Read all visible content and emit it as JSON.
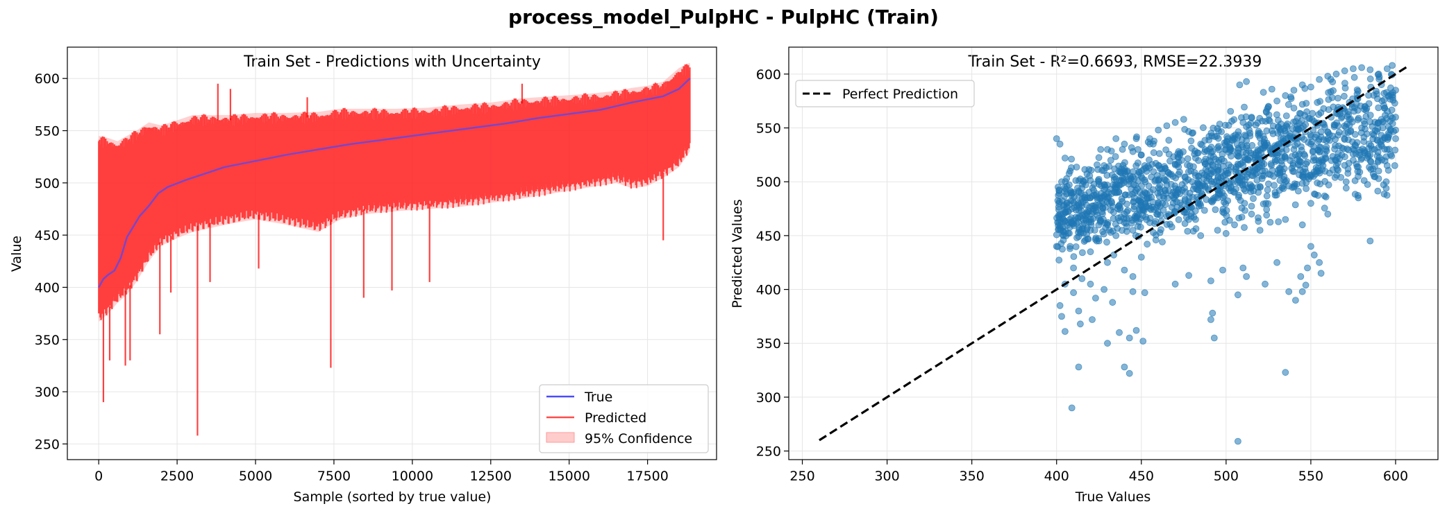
{
  "suptitle": "process_model_PulpHC - PulpHC (Train)",
  "chart_data": [
    {
      "type": "line",
      "title": "Train Set - Predictions with Uncertainty",
      "xlabel": "Sample (sorted by true value)",
      "ylabel": "Value",
      "xlim": [
        -1000,
        19700
      ],
      "ylim": [
        235,
        630
      ],
      "xticks": [
        "0",
        "2500",
        "5000",
        "7500",
        "10000",
        "12500",
        "15000",
        "17500"
      ],
      "yticks": [
        "250",
        "300",
        "350",
        "400",
        "450",
        "500",
        "550",
        "600"
      ],
      "grid": true,
      "legend": {
        "placement": "lower-right",
        "entries": [
          "True",
          "Predicted",
          "95% Confidence"
        ]
      },
      "series": [
        {
          "name": "True",
          "color": "#4a4aff",
          "x": [
            0,
            150,
            300,
            500,
            700,
            900,
            1100,
            1300,
            1600,
            1900,
            2200,
            2800,
            3500,
            4000,
            5000,
            6000,
            7000,
            8000,
            9000,
            10000,
            11000,
            12000,
            13000,
            14000,
            15000,
            16000,
            17000,
            18000,
            18500,
            18850
          ],
          "values": [
            400,
            408,
            412,
            416,
            428,
            448,
            458,
            468,
            478,
            490,
            496,
            503,
            510,
            515,
            521,
            527,
            532,
            537,
            541,
            545,
            549,
            553,
            557,
            562,
            566,
            570,
            577,
            583,
            590,
            600
          ]
        },
        {
          "name": "Predicted",
          "color": "#ff0000",
          "band_lower_x": [
            0,
            300,
            600,
            900,
            1200,
            1600,
            2000,
            2500,
            3000,
            3600,
            4200,
            5000,
            6000,
            7000,
            7700,
            8500,
            9500,
            10500,
            11500,
            12500,
            13500,
            14500,
            15500,
            16500,
            17000,
            17500,
            18000,
            18500,
            18850
          ],
          "band_lower": [
            372,
            380,
            390,
            398,
            410,
            430,
            445,
            452,
            458,
            462,
            466,
            470,
            465,
            458,
            470,
            475,
            478,
            480,
            482,
            486,
            490,
            495,
            500,
            505,
            500,
            502,
            510,
            520,
            535
          ],
          "band_upper_x": [
            0,
            300,
            600,
            900,
            1200,
            1600,
            2000,
            2500,
            3000,
            3600,
            4200,
            5000,
            6000,
            7000,
            7700,
            8500,
            9500,
            10500,
            11500,
            12500,
            13500,
            14500,
            15500,
            16500,
            17000,
            17500,
            18000,
            18500,
            18850
          ],
          "band_upper": [
            540,
            538,
            535,
            540,
            545,
            553,
            550,
            555,
            560,
            560,
            560,
            562,
            562,
            563,
            566,
            566,
            566,
            567,
            570,
            572,
            576,
            578,
            580,
            583,
            586,
            588,
            592,
            605,
            610
          ],
          "spikes": [
            {
              "x": 150,
              "y": 290
            },
            {
              "x": 350,
              "y": 330
            },
            {
              "x": 850,
              "y": 325
            },
            {
              "x": 1000,
              "y": 330
            },
            {
              "x": 1950,
              "y": 355
            },
            {
              "x": 2300,
              "y": 395
            },
            {
              "x": 3150,
              "y": 258
            },
            {
              "x": 3550,
              "y": 405
            },
            {
              "x": 5100,
              "y": 418
            },
            {
              "x": 7400,
              "y": 323
            },
            {
              "x": 8450,
              "y": 390
            },
            {
              "x": 9350,
              "y": 397
            },
            {
              "x": 10550,
              "y": 405
            },
            {
              "x": 18000,
              "y": 445
            },
            {
              "x": 3800,
              "y": 595
            },
            {
              "x": 4200,
              "y": 590
            },
            {
              "x": 6650,
              "y": 582
            },
            {
              "x": 13500,
              "y": 595
            }
          ]
        },
        {
          "name": "95% Confidence",
          "color": "#ffb3b3"
        }
      ]
    },
    {
      "type": "scatter",
      "title": "Train Set - R²=0.6693, RMSE=22.3939",
      "xlabel": "True Values",
      "ylabel": "Predicted Values",
      "xlim": [
        242,
        625
      ],
      "ylim": [
        242,
        625
      ],
      "xticks": [
        "250",
        "300",
        "350",
        "400",
        "450",
        "500",
        "550",
        "600"
      ],
      "yticks": [
        "250",
        "300",
        "350",
        "400",
        "450",
        "500",
        "550",
        "600"
      ],
      "grid": true,
      "legend": {
        "placement": "upper-left",
        "entries": [
          "Perfect Prediction"
        ]
      },
      "reference_line": {
        "name": "Perfect Prediction",
        "x": [
          260,
          608
        ],
        "y": [
          260,
          608
        ],
        "color": "#000000"
      },
      "point_color": "#1f77b4",
      "points": [
        [
          400,
          540
        ],
        [
          402,
          535
        ],
        [
          405,
          522
        ],
        [
          408,
          510
        ],
        [
          403,
          500
        ],
        [
          410,
          490
        ],
        [
          412,
          478
        ],
        [
          404,
          465
        ],
        [
          415,
          456
        ],
        [
          418,
          470
        ],
        [
          420,
          485
        ],
        [
          425,
          500
        ],
        [
          428,
          515
        ],
        [
          430,
          530
        ],
        [
          435,
          540
        ],
        [
          440,
          535
        ],
        [
          445,
          528
        ],
        [
          450,
          525
        ],
        [
          455,
          540
        ],
        [
          460,
          548
        ],
        [
          465,
          552
        ],
        [
          470,
          555
        ],
        [
          475,
          558
        ],
        [
          480,
          545
        ],
        [
          485,
          535
        ],
        [
          490,
          520
        ],
        [
          495,
          510
        ],
        [
          500,
          530
        ],
        [
          505,
          540
        ],
        [
          510,
          555
        ],
        [
          515,
          560
        ],
        [
          520,
          545
        ],
        [
          525,
          570
        ],
        [
          530,
          575
        ],
        [
          535,
          580
        ],
        [
          540,
          585
        ],
        [
          545,
          590
        ],
        [
          550,
          588
        ],
        [
          555,
          595
        ],
        [
          560,
          598
        ],
        [
          565,
          600
        ],
        [
          570,
          603
        ],
        [
          575,
          605
        ],
        [
          580,
          606
        ],
        [
          585,
          604
        ],
        [
          590,
          600
        ],
        [
          595,
          605
        ],
        [
          598,
          608
        ],
        [
          420,
          455
        ],
        [
          430,
          460
        ],
        [
          440,
          470
        ],
        [
          450,
          478
        ],
        [
          460,
          480
        ],
        [
          470,
          490
        ],
        [
          480,
          500
        ],
        [
          490,
          505
        ],
        [
          500,
          510
        ],
        [
          510,
          515
        ],
        [
          520,
          520
        ],
        [
          530,
          525
        ],
        [
          540,
          530
        ],
        [
          550,
          535
        ],
        [
          560,
          540
        ],
        [
          570,
          545
        ],
        [
          580,
          550
        ],
        [
          590,
          555
        ],
        [
          600,
          560
        ],
        [
          410,
          420
        ],
        [
          415,
          410
        ],
        [
          420,
          405
        ],
        [
          408,
          440
        ],
        [
          412,
          448
        ],
        [
          425,
          445
        ],
        [
          435,
          450
        ],
        [
          445,
          455
        ],
        [
          455,
          462
        ],
        [
          465,
          468
        ],
        [
          475,
          472
        ],
        [
          485,
          478
        ],
        [
          495,
          485
        ],
        [
          505,
          490
        ],
        [
          515,
          495
        ],
        [
          525,
          498
        ],
        [
          535,
          500
        ],
        [
          545,
          505
        ],
        [
          555,
          510
        ],
        [
          565,
          515
        ],
        [
          575,
          520
        ],
        [
          585,
          525
        ],
        [
          595,
          530
        ],
        [
          600,
          540
        ],
        [
          540,
          495
        ],
        [
          550,
          480
        ],
        [
          560,
          470
        ],
        [
          545,
          460
        ],
        [
          535,
          465
        ],
        [
          515,
          470
        ],
        [
          505,
          460
        ],
        [
          495,
          455
        ],
        [
          485,
          450
        ],
        [
          500,
          452
        ],
        [
          520,
          455
        ],
        [
          550,
          440
        ],
        [
          555,
          425
        ],
        [
          585,
          445
        ],
        [
          578,
          485
        ],
        [
          590,
          510
        ],
        [
          595,
          515
        ],
        [
          600,
          548
        ],
        [
          508,
          590
        ],
        [
          512,
          593
        ],
        [
          522,
          583
        ],
        [
          527,
          586
        ],
        [
          530,
          520
        ],
        [
          532,
          512
        ],
        [
          528,
          505
        ],
        [
          518,
          508
        ],
        [
          498,
          472
        ],
        [
          478,
          465
        ],
        [
          468,
          458
        ],
        [
          450,
          505
        ],
        [
          452,
          515
        ],
        [
          448,
          530
        ],
        [
          447,
          540
        ],
        [
          457,
          535
        ],
        [
          462,
          512
        ],
        [
          472,
          518
        ],
        [
          482,
          522
        ],
        [
          492,
          528
        ],
        [
          502,
          532
        ],
        [
          512,
          538
        ],
        [
          522,
          542
        ],
        [
          532,
          548
        ],
        [
          542,
          552
        ],
        [
          552,
          556
        ],
        [
          562,
          560
        ],
        [
          572,
          565
        ],
        [
          582,
          570
        ],
        [
          592,
          575
        ],
        [
          596,
          580
        ],
        [
          600,
          585
        ],
        [
          440,
          510
        ],
        [
          432,
          520
        ],
        [
          426,
          530
        ],
        [
          416,
          500
        ],
        [
          406,
          480
        ],
        [
          402,
          470
        ],
        [
          404,
          450
        ],
        [
          400,
          440
        ],
        [
          420,
          435
        ],
        [
          430,
          425
        ],
        [
          440,
          418
        ],
        [
          445,
          412
        ],
        [
          450,
          430
        ],
        [
          428,
          400
        ],
        [
          410,
          397
        ],
        [
          405,
          405
        ],
        [
          402,
          385
        ],
        [
          403,
          375
        ],
        [
          413,
          380
        ],
        [
          423,
          392
        ],
        [
          433,
          388
        ],
        [
          445,
          398
        ],
        [
          452,
          397
        ],
        [
          470,
          405
        ],
        [
          478,
          413
        ],
        [
          491,
          408
        ],
        [
          498,
          418
        ],
        [
          507,
          395
        ],
        [
          510,
          420
        ],
        [
          512,
          412
        ],
        [
          523,
          405
        ],
        [
          537,
          398
        ],
        [
          544,
          412
        ],
        [
          530,
          425
        ],
        [
          548,
          420
        ],
        [
          552,
          432
        ],
        [
          405,
          361
        ],
        [
          414,
          368
        ],
        [
          421,
          372
        ],
        [
          430,
          350
        ],
        [
          437,
          360
        ],
        [
          443,
          355
        ],
        [
          447,
          362
        ],
        [
          451,
          352
        ],
        [
          491,
          372
        ],
        [
          492,
          378
        ],
        [
          493,
          355
        ],
        [
          409,
          290
        ],
        [
          413,
          328
        ],
        [
          440,
          328
        ],
        [
          443,
          322
        ],
        [
          535,
          323
        ],
        [
          507,
          259
        ],
        [
          545,
          398
        ],
        [
          547,
          404
        ],
        [
          541,
          390
        ],
        [
          556,
          415
        ]
      ]
    }
  ]
}
